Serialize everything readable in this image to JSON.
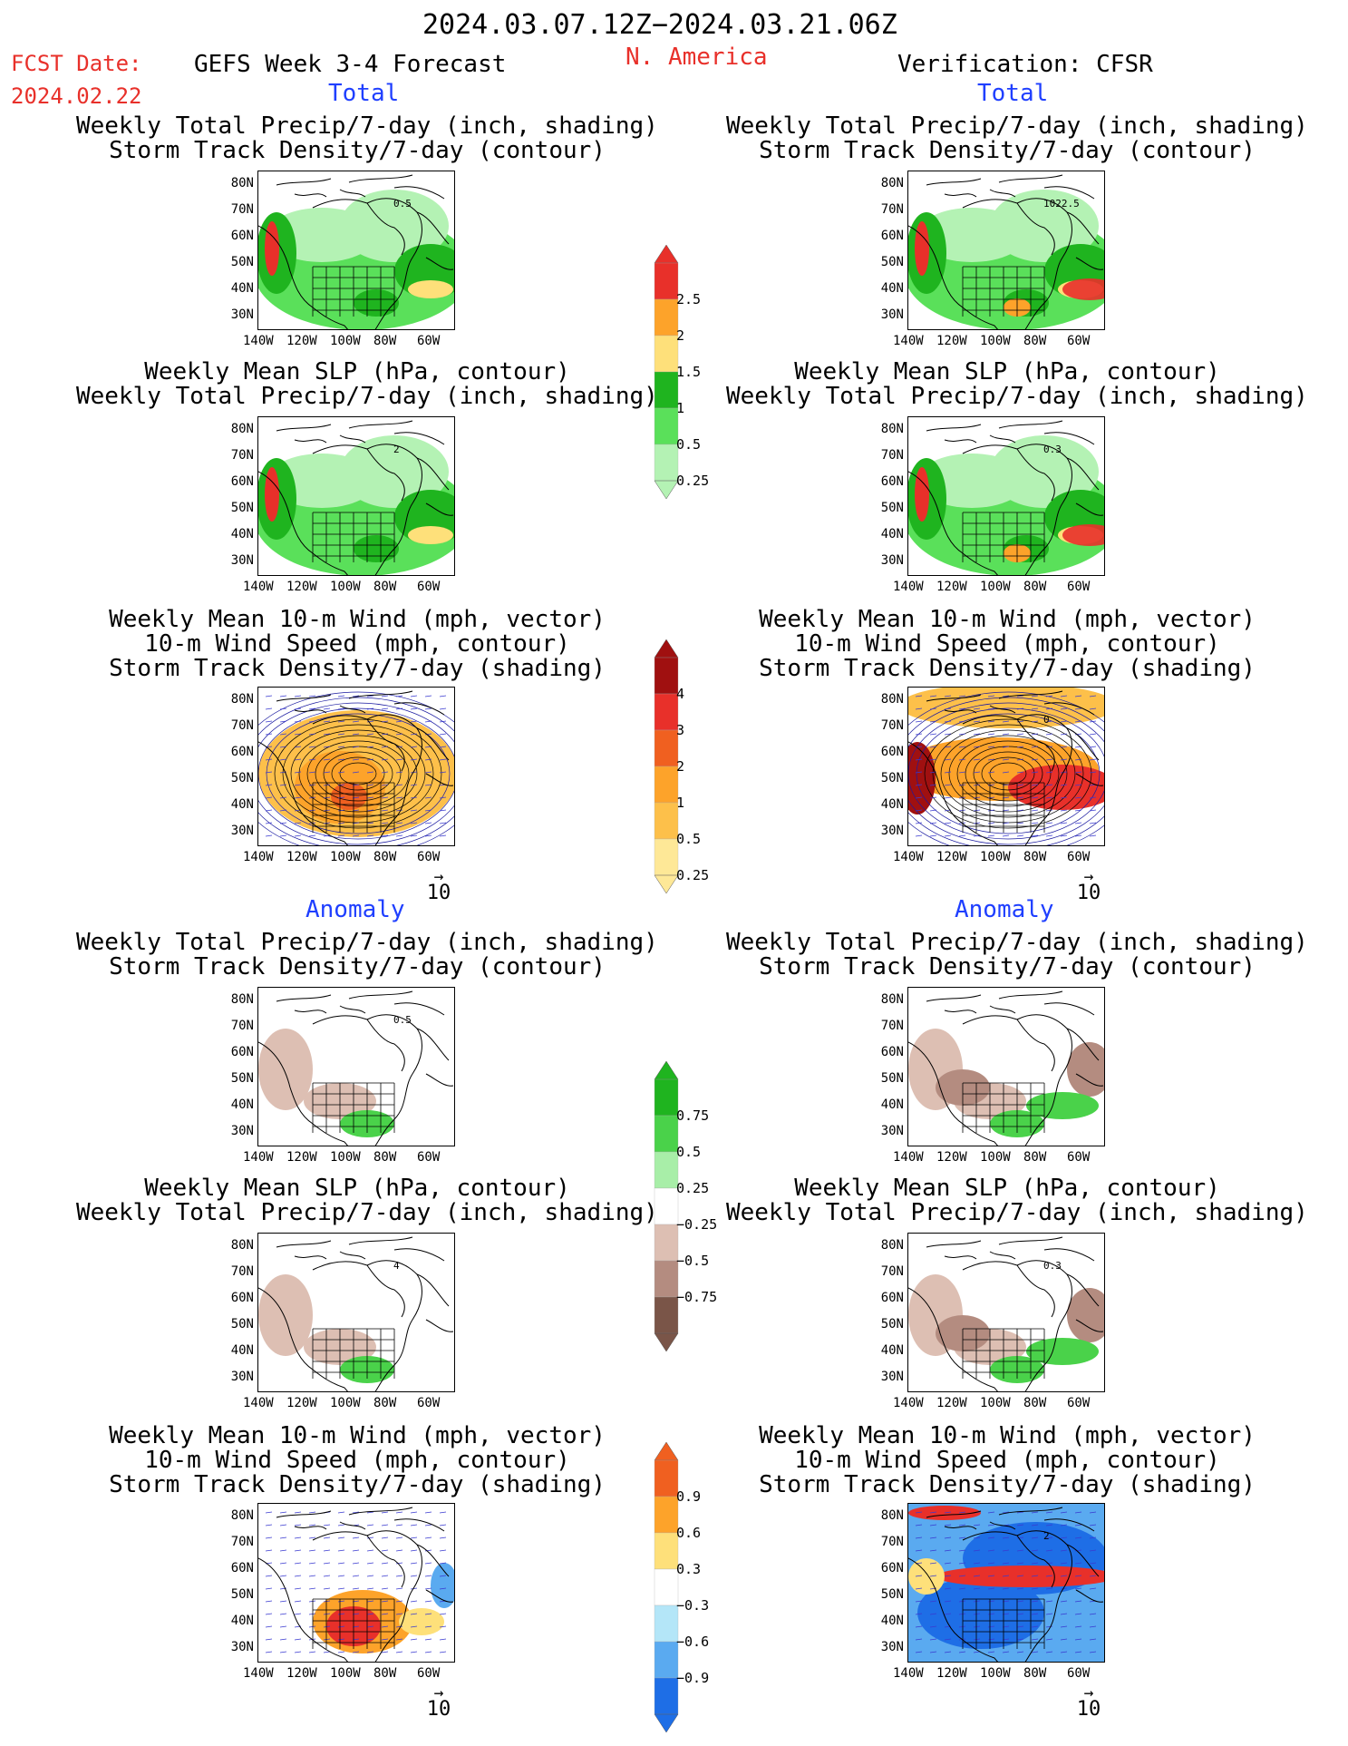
{
  "header": {
    "date_range": "2024.03.07.12Z−2024.03.21.06Z",
    "fcst_label": "FCST Date:",
    "fcst_date": "2024.02.22",
    "forecast_title": "GEFS Week 3-4 Forecast",
    "region": "N. America",
    "verification": "Verification: CFSR"
  },
  "sections": {
    "total": "Total",
    "anomaly": "Anomaly"
  },
  "panel_titles": {
    "precip_storm": "Weekly Total Precip/7-day (inch, shading)\nStorm Track Density/7-day (contour)",
    "slp_precip": "Weekly Mean SLP (hPa, contour)\nWeekly Total Precip/7-day (inch, shading)",
    "wind_storm": "Weekly Mean 10-m Wind (mph, vector)\n10-m Wind Speed (mph, contour)\nStorm Track Density/7-day (shading)"
  },
  "axes": {
    "lat_ticks": [
      "80N",
      "70N",
      "60N",
      "50N",
      "40N",
      "30N"
    ],
    "lon_ticks": [
      "140W",
      "120W",
      "100W",
      "80W",
      "60W"
    ],
    "vector_ref": "10"
  },
  "colorbars": {
    "total_precip": {
      "labels": [
        "2.5",
        "2",
        "1.5",
        "1",
        "0.5",
        "0.25"
      ],
      "colors": [
        "#e8302a",
        "#fda32a",
        "#fee07a",
        "#1fb41f",
        "#5ae05a",
        "#b4f2b4"
      ]
    },
    "total_storm": {
      "labels": [
        "4",
        "3",
        "2",
        "1",
        "0.5",
        "0.25"
      ],
      "colors": [
        "#a01010",
        "#e8302a",
        "#f06020",
        "#fda32a",
        "#fdc04a",
        "#fee897"
      ]
    },
    "anom_precip": {
      "labels": [
        "0.75",
        "0.5",
        "0.25",
        "−0.25",
        "−0.5",
        "−0.75"
      ],
      "colors": [
        "#1fb41f",
        "#4ad24a",
        "#a8eea8",
        "#ffffff",
        "#ddbfb3",
        "#b48c80",
        "#7a5548"
      ]
    },
    "anom_storm": {
      "labels": [
        "0.9",
        "0.6",
        "0.3",
        "−0.3",
        "−0.6",
        "−0.9"
      ],
      "colors": [
        "#f06020",
        "#fda32a",
        "#fee07a",
        "#ffffff",
        "#b4e6f8",
        "#5aaaf0",
        "#1e6ee6"
      ]
    }
  },
  "map_annotations": {
    "p1": "0.5",
    "p1b": "1",
    "p2": "0.5",
    "p2b": "5",
    "p2c": "1",
    "p3": "1022.5",
    "p5": "2",
    "p6": "4",
    "p7": "0.3",
    "p8": "0.3",
    "p11": "0",
    "p12": "2"
  }
}
